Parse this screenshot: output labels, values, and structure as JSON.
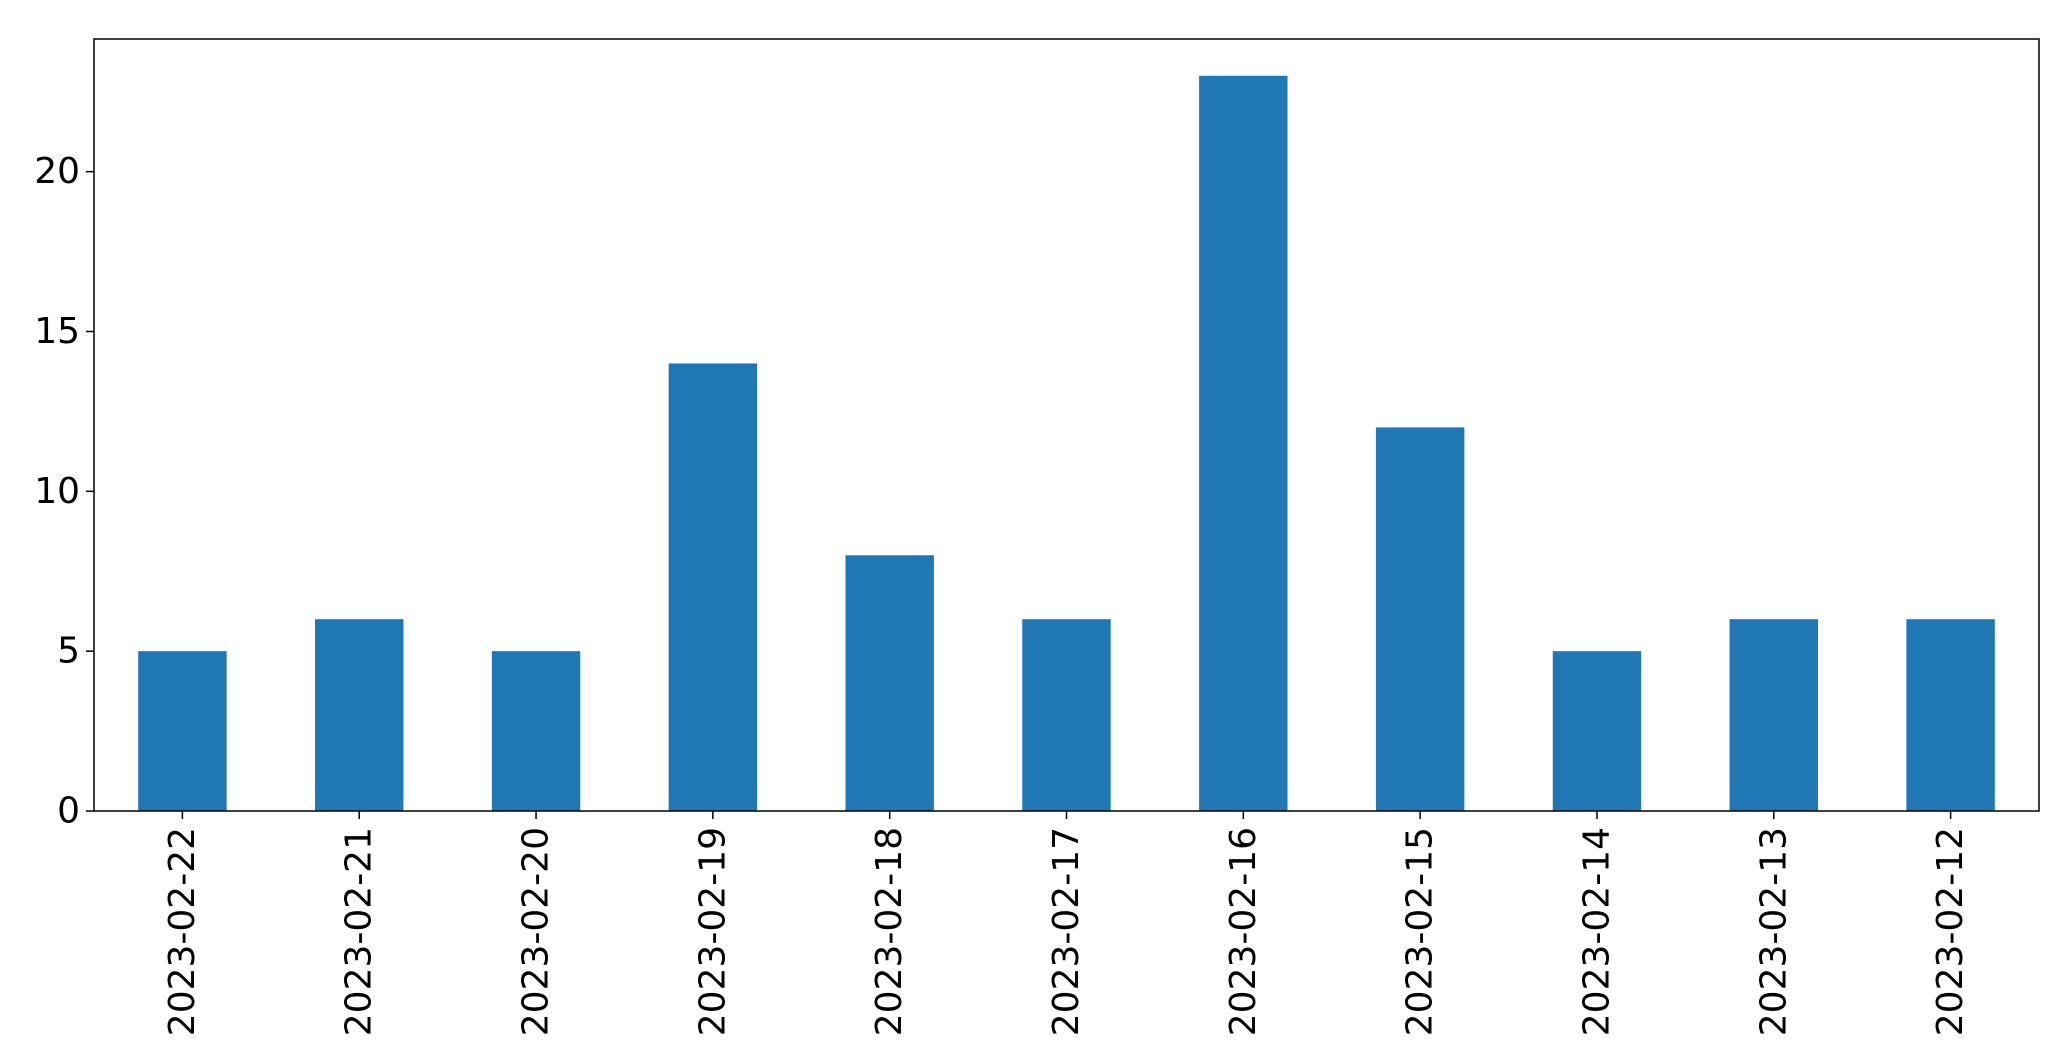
{
  "chart_data": {
    "type": "bar",
    "title": "",
    "xlabel": "",
    "ylabel": "",
    "categories": [
      "2023-02-22",
      "2023-02-21",
      "2023-02-20",
      "2023-02-19",
      "2023-02-18",
      "2023-02-17",
      "2023-02-16",
      "2023-02-15",
      "2023-02-14",
      "2023-02-13",
      "2023-02-12"
    ],
    "values": [
      5,
      6,
      5,
      14,
      8,
      6,
      23,
      12,
      5,
      6,
      6
    ],
    "ylim": [
      0,
      24.15
    ],
    "yticks": [
      0,
      5,
      10,
      15,
      20
    ],
    "grid": false,
    "legend": "none",
    "colors": {
      "bar": "#1f77b4",
      "axis": "#000000"
    }
  }
}
